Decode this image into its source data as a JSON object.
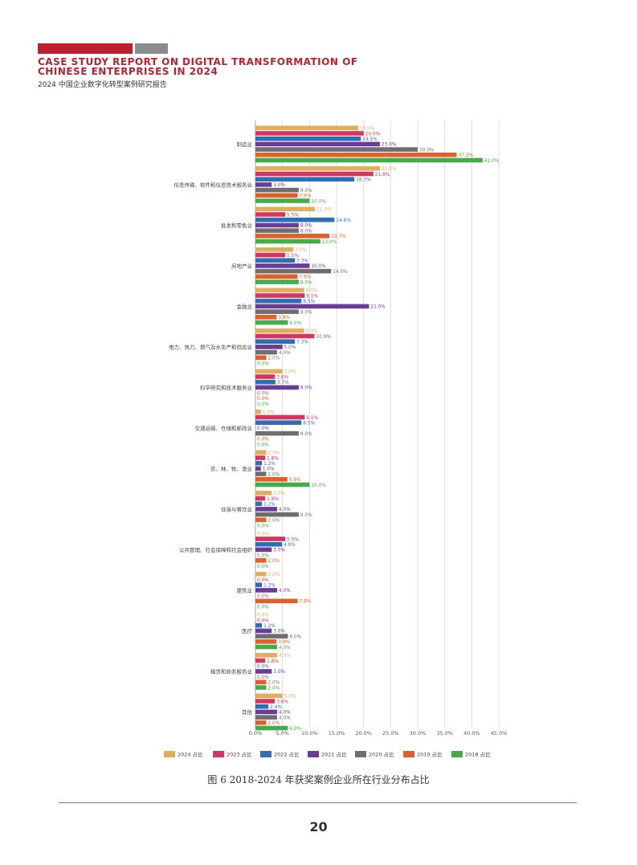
{
  "header": {
    "title_en_line1": "CASE STUDY REPORT ON DIGITAL TRANSFORMATION OF",
    "title_en_line2": "CHINESE ENTERPRISES IN 2024",
    "title_cn": "2024 中国企业数字化转型案例研究报告"
  },
  "caption": "图 6  2018-2024 年获奖案例企业所在行业分布占比",
  "page_number": "20",
  "chart_data": {
    "type": "bar",
    "orientation": "horizontal",
    "categories": [
      "制造业",
      "信息传输、软件和信息技术服务业",
      "批发和零售业",
      "房地产业",
      "金融业",
      "电力、热力、燃气及水生产和供应业",
      "科学研究和技术服务业",
      "交通运输、仓储和邮政业",
      "农、林、牧、渔业",
      "住宿与餐饮业",
      "公共管理、社会保障和社会组织",
      "建筑业",
      "医疗",
      "租赁和商务服务业",
      "其他"
    ],
    "series": [
      {
        "name": "2024 占比",
        "color": "#e3ad5d",
        "values": [
          19.0,
          23.0,
          11.0,
          7.0,
          9.0,
          9.0,
          5.0,
          1.0,
          2.0,
          3.0,
          0.0,
          2.0,
          0.0,
          4.0,
          5.0
        ],
        "labels": [
          "19.0%",
          "23.0%",
          "11.0%",
          "7.0%",
          "9.0%",
          "9.0%",
          "5.0%",
          "1.0%",
          "2.0%",
          "3.0%",
          "0.0%",
          "2.0%",
          "0.0%",
          "4.0%",
          "5.0%"
        ]
      },
      {
        "name": "2023 占比",
        "color": "#d6355d",
        "values": [
          20.0,
          21.8,
          5.5,
          5.5,
          9.1,
          10.9,
          3.6,
          9.1,
          1.8,
          1.8,
          5.5,
          0.0,
          0.0,
          1.8,
          3.6
        ],
        "labels": [
          "20.0%",
          "21.8%",
          "5.5%",
          "5.5%",
          "9.1%",
          "10.9%",
          "3.6%",
          "9.1%",
          "1.8%",
          "1.8%",
          "5.5%",
          "0.0%",
          "0.0%",
          "1.8%",
          "3.6%"
        ]
      },
      {
        "name": "2022 占比",
        "color": "#2e6eb5",
        "values": [
          19.5,
          18.3,
          14.6,
          7.3,
          8.5,
          7.3,
          3.7,
          8.5,
          1.2,
          1.2,
          4.9,
          1.2,
          1.2,
          0.0,
          2.4
        ],
        "labels": [
          "19.5%",
          "18.3%",
          "14.6%",
          "7.3%",
          "8.5%",
          "7.3%",
          "3.7%",
          "8.5%",
          "1.2%",
          "1.2%",
          "4.9%",
          "1.2%",
          "1.2%",
          "0.0%",
          "2.4%"
        ]
      },
      {
        "name": "2021 占比",
        "color": "#6a3c98",
        "values": [
          23.0,
          3.0,
          8.0,
          10.0,
          21.0,
          5.0,
          8.0,
          0.0,
          1.0,
          4.0,
          3.0,
          4.0,
          3.0,
          3.0,
          4.0
        ],
        "labels": [
          "23.0%",
          "3.0%",
          "8.0%",
          "10.0%",
          "21.0%",
          "5.0%",
          "8.0%",
          "0.0%",
          "1.0%",
          "4.0%",
          "3.0%",
          "4.0%",
          "3.0%",
          "3.0%",
          "4.0%"
        ]
      },
      {
        "name": "2020 占比",
        "color": "#6e6e6e",
        "values": [
          30.0,
          8.0,
          8.0,
          14.0,
          8.0,
          4.0,
          0.0,
          8.0,
          2.0,
          8.0,
          0.0,
          0.0,
          6.0,
          0.0,
          4.0
        ],
        "labels": [
          "30.0%",
          "8.0%",
          "8.0%",
          "14.0%",
          "8.0%",
          "4.0%",
          "0.0%",
          "8.0%",
          "2.0%",
          "8.0%",
          "0.0%",
          "0.0%",
          "6.0%",
          "0.0%",
          "4.0%"
        ]
      },
      {
        "name": "2019 占比",
        "color": "#e05f2a",
        "values": [
          37.2,
          7.8,
          13.7,
          7.8,
          3.9,
          2.0,
          0.0,
          0.0,
          5.9,
          2.0,
          2.0,
          7.8,
          3.9,
          2.0,
          2.0
        ],
        "labels": [
          "37.2%",
          "7.8%",
          "13.7%",
          "7.8%",
          "3.9%",
          "2.0%",
          "0.0%",
          "0.0%",
          "5.9%",
          "2.0%",
          "2.0%",
          "7.8%",
          "3.9%",
          "2.0%",
          "2.0%"
        ]
      },
      {
        "name": "2018 占比",
        "color": "#44ad4a",
        "values": [
          42.0,
          10.0,
          12.0,
          8.0,
          6.0,
          0.0,
          0.0,
          0.0,
          10.0,
          0.0,
          0.0,
          0.0,
          4.0,
          2.0,
          6.0
        ],
        "labels": [
          "42.0%",
          "10.0%",
          "12.0%",
          "8.0%",
          "6.0%",
          "0.0%",
          "0.0%",
          "0.0%",
          "10.0%",
          "0.0%",
          "0.0%",
          "0.0%",
          "4.0%",
          "2.0%",
          "6.0%"
        ]
      }
    ],
    "x_ticks": [
      "0.0%",
      "5.0%",
      "10.0%",
      "15.0%",
      "20.0%",
      "25.0%",
      "30.0%",
      "35.0%",
      "40.0%",
      "45.0%"
    ],
    "xlim": [
      0,
      45
    ],
    "grid": "vertical",
    "legend": "bottom"
  }
}
